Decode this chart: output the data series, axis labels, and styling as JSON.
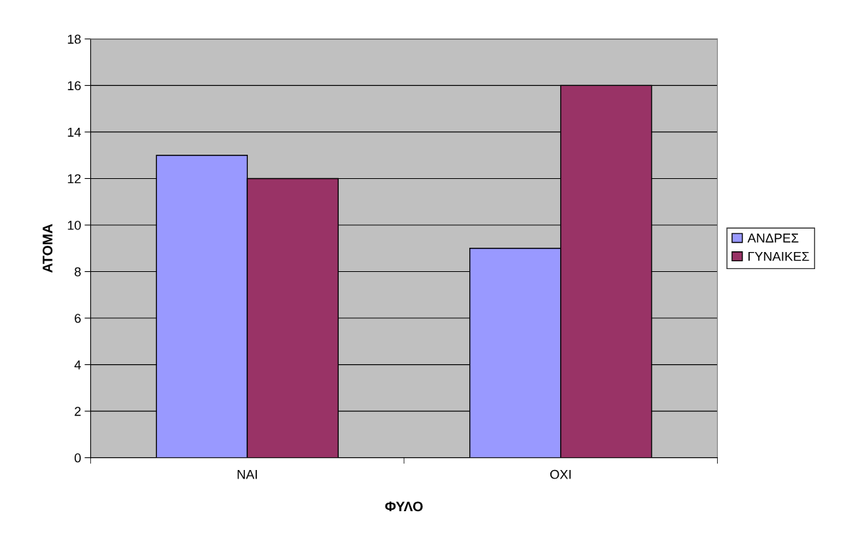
{
  "chart_data": {
    "type": "bar",
    "xlabel": "ΦΥΛΟ",
    "ylabel": "ΑΤΟΜΑ",
    "categories": [
      "ΝΑΙ",
      "ΟΧΙ"
    ],
    "series": [
      {
        "name": "ΑΝΔΡΕΣ",
        "color": "#9999ff",
        "values": [
          13,
          9
        ]
      },
      {
        "name": "ΓΥΝΑΙΚΕΣ",
        "color": "#993366",
        "values": [
          12,
          16
        ]
      }
    ],
    "ylim": [
      0,
      18
    ],
    "yticks": [
      0,
      2,
      4,
      6,
      8,
      10,
      12,
      14,
      16,
      18
    ],
    "grid": "y",
    "legend": "right"
  }
}
